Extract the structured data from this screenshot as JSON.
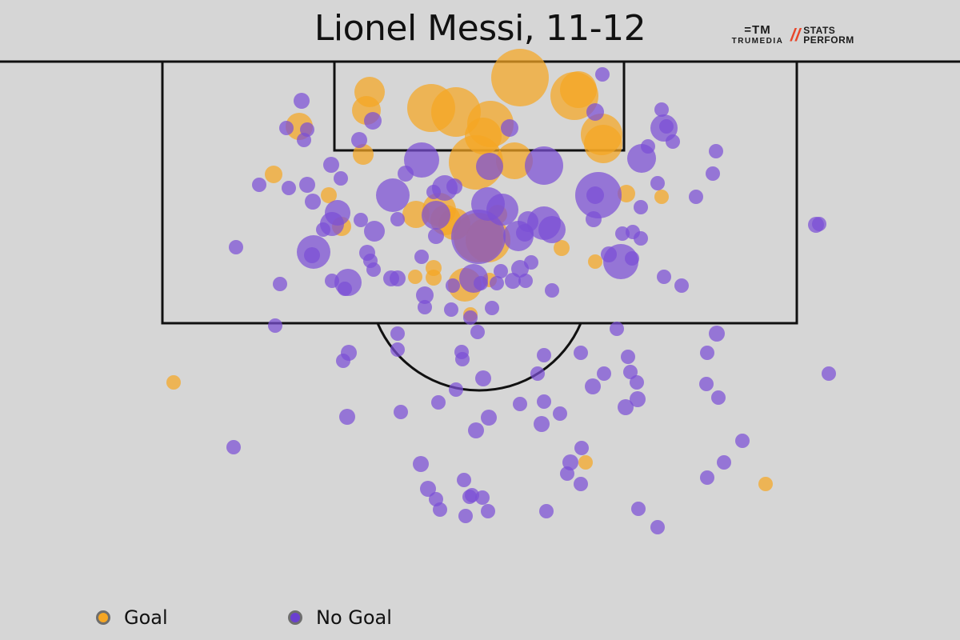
{
  "title": "Lionel Messi, 11-12",
  "logos": {
    "trumedia_mark": "=TM",
    "trumedia_text": "TRUMEDIA",
    "stats_line1": "STATS",
    "stats_line2": "PERFORM"
  },
  "legend": {
    "goal_label": "Goal",
    "nogoal_label": "No Goal"
  },
  "colors": {
    "goal": "#f5a623",
    "no_goal": "#7b4fd6",
    "background": "#d6d6d6",
    "lines": "#111111"
  },
  "chart_data": {
    "type": "scatter",
    "description_of_encoding": "shot locations on a half-pitch; size = shot quality (xG), color = outcome",
    "series": [
      {
        "name": "Goal",
        "points": [
          [
            650,
            97,
            36
          ],
          [
            539,
            135,
            30
          ],
          [
            570,
            140,
            31
          ],
          [
            462,
            115,
            19
          ],
          [
            458,
            138,
            18
          ],
          [
            718,
            120,
            30
          ],
          [
            723,
            112,
            23
          ],
          [
            752,
            168,
            26
          ],
          [
            754,
            180,
            24
          ],
          [
            613,
            155,
            29
          ],
          [
            604,
            170,
            23
          ],
          [
            595,
            203,
            34
          ],
          [
            643,
            201,
            23
          ],
          [
            549,
            262,
            21
          ],
          [
            520,
            268,
            17
          ],
          [
            557,
            275,
            19
          ],
          [
            598,
            297,
            31
          ],
          [
            610,
            300,
            28
          ],
          [
            568,
            280,
            20
          ],
          [
            622,
            268,
            12
          ],
          [
            374,
            158,
            17
          ],
          [
            342,
            218,
            11
          ],
          [
            454,
            193,
            13
          ],
          [
            411,
            244,
            10
          ],
          [
            427,
            283,
            12
          ],
          [
            542,
            335,
            10
          ],
          [
            542,
            347,
            10
          ],
          [
            519,
            346,
            9
          ],
          [
            581,
            356,
            21
          ],
          [
            612,
            350,
            9
          ],
          [
            702,
            310,
            10
          ],
          [
            744,
            327,
            9
          ],
          [
            783,
            242,
            11
          ],
          [
            827,
            246,
            9
          ],
          [
            588,
            393,
            9
          ],
          [
            217,
            478,
            9
          ],
          [
            732,
            578,
            9
          ],
          [
            957,
            605,
            9
          ]
        ]
      },
      {
        "name": "No Goal",
        "points": [
          [
            753,
            93,
            9
          ],
          [
            744,
            140,
            11
          ],
          [
            466,
            151,
            11
          ],
          [
            377,
            126,
            10
          ],
          [
            358,
            160,
            9
          ],
          [
            384,
            162,
            9
          ],
          [
            380,
            175,
            9
          ],
          [
            449,
            175,
            10
          ],
          [
            637,
            160,
            11
          ],
          [
            827,
            137,
            9
          ],
          [
            830,
            160,
            17
          ],
          [
            833,
            158,
            9
          ],
          [
            841,
            177,
            9
          ],
          [
            810,
            183,
            9
          ],
          [
            802,
            198,
            18
          ],
          [
            895,
            189,
            9
          ],
          [
            891,
            217,
            9
          ],
          [
            870,
            246,
            9
          ],
          [
            822,
            229,
            9
          ],
          [
            801,
            259,
            9
          ],
          [
            527,
            200,
            22
          ],
          [
            507,
            217,
            10
          ],
          [
            680,
            207,
            24
          ],
          [
            612,
            208,
            17
          ],
          [
            426,
            223,
            9
          ],
          [
            414,
            206,
            10
          ],
          [
            324,
            231,
            9
          ],
          [
            361,
            235,
            9
          ],
          [
            384,
            231,
            10
          ],
          [
            391,
            252,
            10
          ],
          [
            491,
            244,
            21
          ],
          [
            568,
            233,
            10
          ],
          [
            556,
            235,
            16
          ],
          [
            542,
            240,
            9
          ],
          [
            545,
            269,
            18
          ],
          [
            610,
            255,
            21
          ],
          [
            628,
            262,
            20
          ],
          [
            660,
            277,
            13
          ],
          [
            680,
            279,
            21
          ],
          [
            690,
            287,
            17
          ],
          [
            656,
            291,
            11
          ],
          [
            648,
            295,
            19
          ],
          [
            744,
            244,
            11
          ],
          [
            748,
            244,
            29
          ],
          [
            742,
            274,
            10
          ],
          [
            422,
            266,
            16
          ],
          [
            415,
            280,
            15
          ],
          [
            404,
            287,
            9
          ],
          [
            451,
            275,
            9
          ],
          [
            468,
            289,
            13
          ],
          [
            497,
            274,
            9
          ],
          [
            545,
            295,
            10
          ],
          [
            598,
            296,
            34
          ],
          [
            778,
            292,
            9
          ],
          [
            791,
            290,
            9
          ],
          [
            801,
            298,
            9
          ],
          [
            776,
            327,
            22
          ],
          [
            790,
            323,
            9
          ],
          [
            761,
            318,
            10
          ],
          [
            295,
            309,
            9
          ],
          [
            392,
            315,
            21
          ],
          [
            390,
            319,
            10
          ],
          [
            459,
            316,
            10
          ],
          [
            463,
            326,
            9
          ],
          [
            467,
            337,
            9
          ],
          [
            527,
            321,
            9
          ],
          [
            415,
            351,
            9
          ],
          [
            435,
            353,
            17
          ],
          [
            431,
            361,
            9
          ],
          [
            489,
            348,
            10
          ],
          [
            497,
            348,
            10
          ],
          [
            531,
            369,
            11
          ],
          [
            531,
            384,
            9
          ],
          [
            564,
            387,
            9
          ],
          [
            566,
            357,
            9
          ],
          [
            592,
            348,
            18
          ],
          [
            601,
            354,
            9
          ],
          [
            621,
            354,
            9
          ],
          [
            641,
            351,
            10
          ],
          [
            657,
            351,
            9
          ],
          [
            650,
            336,
            11
          ],
          [
            664,
            328,
            9
          ],
          [
            626,
            339,
            9
          ],
          [
            690,
            363,
            9
          ],
          [
            830,
            346,
            9
          ],
          [
            852,
            357,
            9
          ],
          [
            615,
            385,
            9
          ],
          [
            588,
            397,
            9
          ],
          [
            597,
            415,
            9
          ],
          [
            350,
            355,
            9
          ],
          [
            1020,
            281,
            10
          ],
          [
            1024,
            280,
            9
          ],
          [
            344,
            407,
            9
          ],
          [
            497,
            417,
            9
          ],
          [
            497,
            437,
            9
          ],
          [
            436,
            441,
            10
          ],
          [
            429,
            451,
            9
          ],
          [
            577,
            440,
            9
          ],
          [
            578,
            449,
            9
          ],
          [
            680,
            444,
            9
          ],
          [
            726,
            441,
            9
          ],
          [
            771,
            411,
            9
          ],
          [
            896,
            417,
            10
          ],
          [
            884,
            441,
            9
          ],
          [
            785,
            446,
            9
          ],
          [
            788,
            465,
            9
          ],
          [
            755,
            467,
            9
          ],
          [
            796,
            478,
            9
          ],
          [
            741,
            483,
            10
          ],
          [
            797,
            499,
            10
          ],
          [
            782,
            509,
            10
          ],
          [
            883,
            480,
            9
          ],
          [
            898,
            497,
            9
          ],
          [
            1036,
            467,
            9
          ],
          [
            672,
            467,
            9
          ],
          [
            604,
            473,
            10
          ],
          [
            570,
            487,
            9
          ],
          [
            548,
            503,
            9
          ],
          [
            650,
            505,
            9
          ],
          [
            680,
            502,
            9
          ],
          [
            700,
            517,
            9
          ],
          [
            677,
            530,
            10
          ],
          [
            611,
            522,
            10
          ],
          [
            595,
            538,
            10
          ],
          [
            434,
            521,
            10
          ],
          [
            501,
            515,
            9
          ],
          [
            292,
            559,
            9
          ],
          [
            928,
            551,
            9
          ],
          [
            727,
            560,
            9
          ],
          [
            713,
            578,
            10
          ],
          [
            709,
            592,
            9
          ],
          [
            905,
            578,
            9
          ],
          [
            884,
            597,
            9
          ],
          [
            726,
            605,
            9
          ],
          [
            526,
            580,
            10
          ],
          [
            580,
            600,
            9
          ],
          [
            535,
            611,
            10
          ],
          [
            587,
            621,
            9
          ],
          [
            603,
            622,
            9
          ],
          [
            545,
            624,
            9
          ],
          [
            590,
            619,
            9
          ],
          [
            550,
            637,
            9
          ],
          [
            610,
            639,
            9
          ],
          [
            582,
            645,
            9
          ],
          [
            683,
            639,
            9
          ],
          [
            798,
            636,
            9
          ],
          [
            822,
            659,
            9
          ]
        ]
      }
    ]
  }
}
